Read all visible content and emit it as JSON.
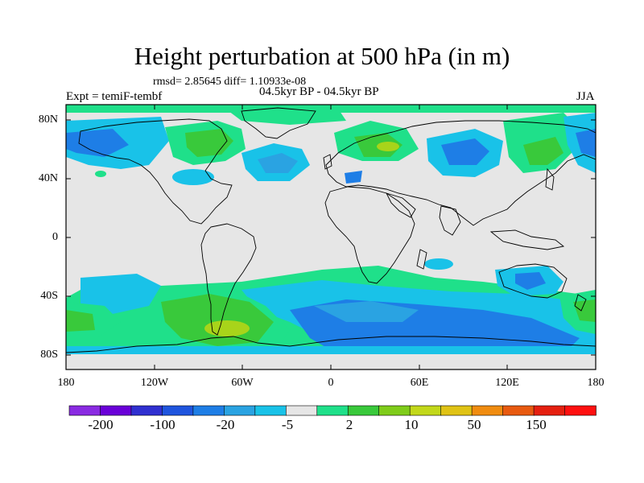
{
  "title": "Height perturbation at 500 hPa (in m)",
  "subtitle_stats": "rmsd= 2.85645 diff= 1.10933e-08",
  "subtitle_periods": "04.5kyr BP - 04.5kyr BP",
  "experiment_label": "Expt = temiF-tembf",
  "season": "JJA",
  "lat_ticks": [
    "80N",
    "40N",
    "0",
    "40S",
    "80S"
  ],
  "lon_ticks": [
    "180",
    "120W",
    "60W",
    "0",
    "60E",
    "120E",
    "180"
  ],
  "colorbar": {
    "colors": [
      "#8a2be2",
      "#6a00d8",
      "#3030d0",
      "#1f55de",
      "#1e7ee6",
      "#2aa3e2",
      "#19c2e8",
      "#e6e6e6",
      "#1fe08a",
      "#39c93b",
      "#7fcc1a",
      "#c2d81a",
      "#e0c315",
      "#f08c10",
      "#e85a10",
      "#e52010",
      "#ff1010"
    ],
    "labels": [
      "-200",
      "-100",
      "-20",
      "-5",
      "2",
      "10",
      "50",
      "150"
    ]
  },
  "map": {
    "background": "#e6e6e6",
    "level_colors": {
      "light_blue": "#19c2e8",
      "mid_blue": "#2aa3e2",
      "blue": "#1e7ee6",
      "mint": "#1fe08a",
      "green": "#39c93b",
      "yellow_green": "#a8d41a"
    }
  }
}
